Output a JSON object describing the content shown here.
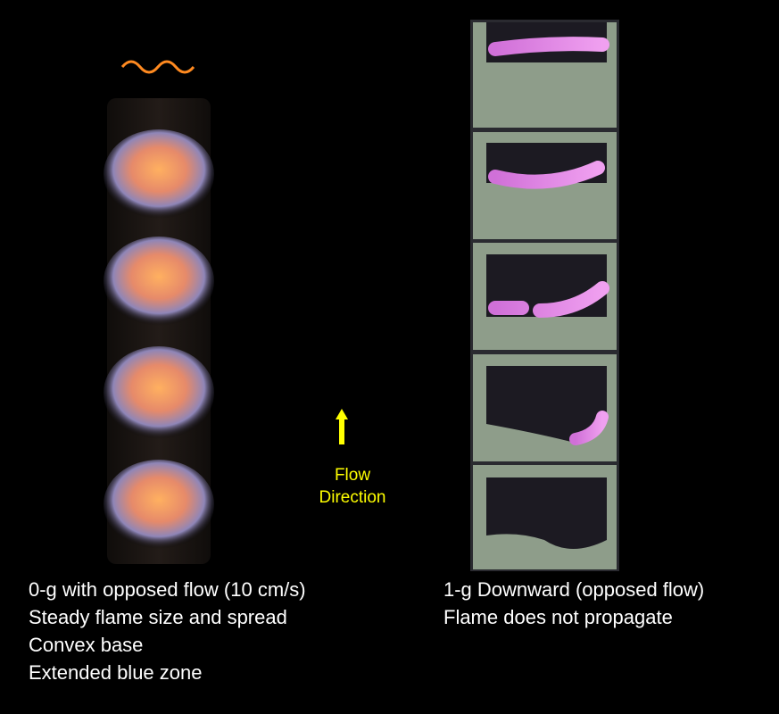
{
  "flow_label": {
    "lines": [
      "Flow",
      "Direction"
    ]
  },
  "left_caption": {
    "lines": [
      "0-g with opposed flow (10 cm/s)",
      "Steady flame size and spread",
      "Convex base",
      "Extended blue zone"
    ]
  },
  "right_caption": {
    "lines": [
      "1-g Downward (opposed flow)",
      "Flame does not propagate"
    ]
  }
}
